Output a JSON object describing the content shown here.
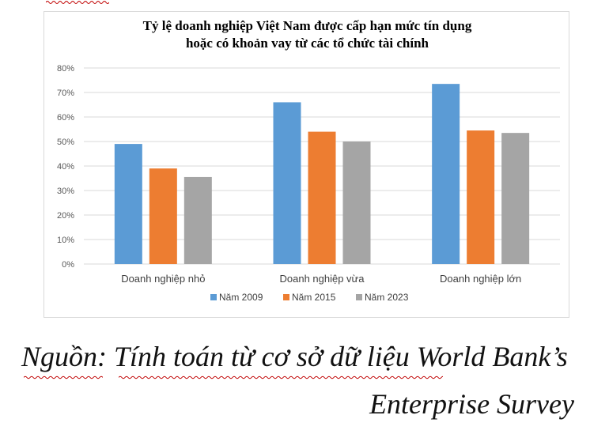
{
  "chart_data": {
    "type": "bar",
    "title_line1": "Tỷ lệ doanh nghiệp Việt Nam được cấp hạn mức tín dụng",
    "title_line2": "hoặc có khoản vay từ các tổ chức tài chính",
    "categories": [
      "Doanh nghiệp nhỏ",
      "Doanh nghiệp vừa",
      "Doanh nghiệp lớn"
    ],
    "series": [
      {
        "name": "Năm 2009",
        "values": [
          49,
          66,
          73.5
        ],
        "color": "#5b9bd5"
      },
      {
        "name": "Năm 2015",
        "values": [
          39,
          54,
          54.5
        ],
        "color": "#ed7d31"
      },
      {
        "name": "Năm 2023",
        "values": [
          35.5,
          50,
          53.5
        ],
        "color": "#a5a5a5"
      }
    ],
    "y_ticks": [
      "0%",
      "10%",
      "20%",
      "30%",
      "40%",
      "50%",
      "60%",
      "70%",
      "80%"
    ],
    "ylim": [
      0,
      80
    ],
    "grid": true,
    "legend_position": "bottom"
  },
  "source": {
    "line1": "Nguồn: Tính toán từ cơ sở dữ liệu World Bank’s",
    "line2": "Enterprise Survey"
  }
}
